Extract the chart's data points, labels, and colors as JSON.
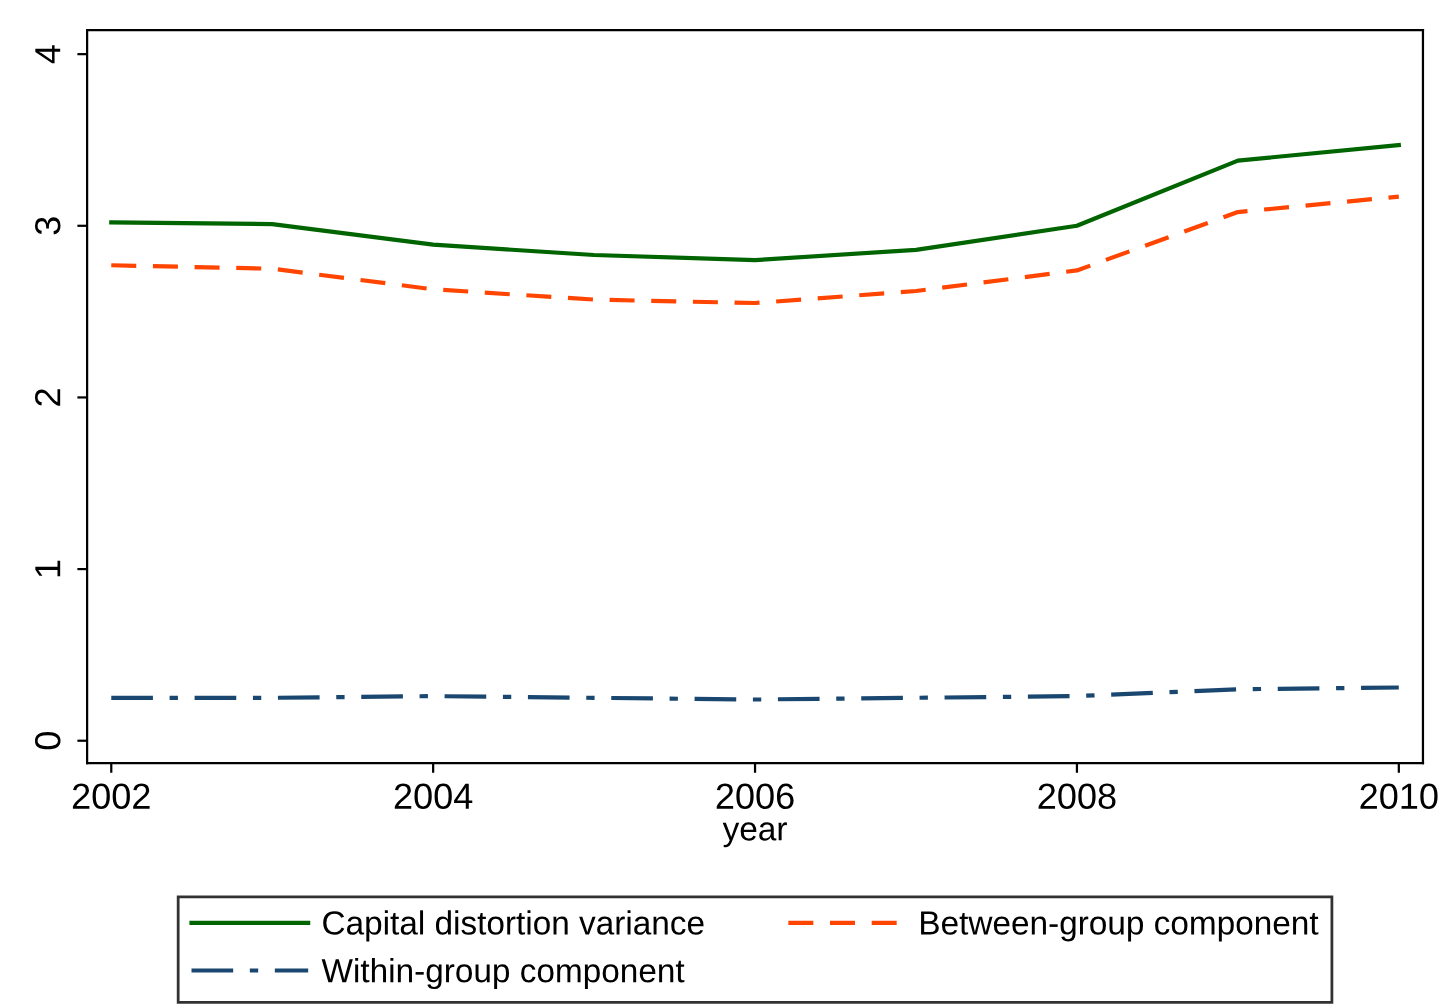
{
  "chart_data": {
    "type": "line",
    "xlabel": "year",
    "x": [
      2002,
      2003,
      2004,
      2005,
      2006,
      2007,
      2008,
      2009,
      2010
    ],
    "series": [
      {
        "name": "Capital distortion variance",
        "color": "#006400",
        "line_style": "solid",
        "values": [
          3.02,
          3.01,
          2.89,
          2.83,
          2.8,
          2.86,
          3.0,
          3.38,
          3.47
        ]
      },
      {
        "name": "Between-group component",
        "color": "#ff4500",
        "line_style": "dashed",
        "values": [
          2.77,
          2.75,
          2.63,
          2.57,
          2.55,
          2.62,
          2.74,
          3.08,
          3.17
        ]
      },
      {
        "name": "Within-group component",
        "color": "#1a476f",
        "line_style": "dashdot",
        "values": [
          0.25,
          0.25,
          0.26,
          0.25,
          0.24,
          0.25,
          0.26,
          0.3,
          0.31
        ]
      }
    ],
    "xlim": [
      2001.85,
      2010.15
    ],
    "xticks": [
      2002,
      2004,
      2006,
      2008,
      2010
    ],
    "ylim": [
      -0.13,
      4.14
    ],
    "yticks": [
      0,
      1,
      2,
      3,
      4
    ],
    "grid": false,
    "legend": "bottom",
    "marker": "none"
  }
}
